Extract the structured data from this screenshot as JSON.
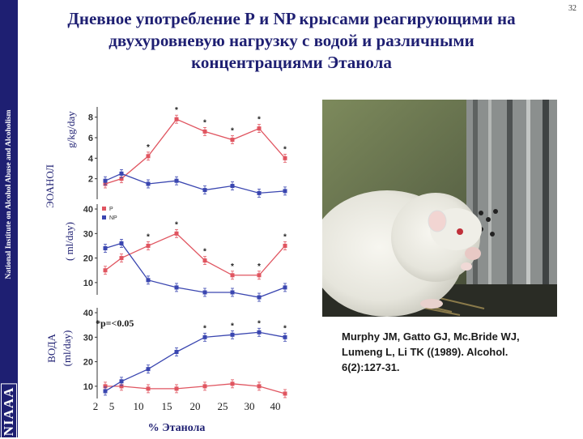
{
  "page": {
    "title_lines": [
      "Дневное употребление Р и NP крысами реагирующими на",
      "двухуровневую нагрузку с водой и различными",
      "концентрациями Этанола"
    ],
    "page_number": "32",
    "sidebar_institution": "National Institute on Alcohol Abuse and Alcoholism",
    "sidebar_logo": "NIAAA",
    "ethanol_label": "ЭОАНОЛ",
    "ethanol_units": "g/kg/day",
    "volume_units": "( ml/day)",
    "water_label": "ВОДА",
    "water_units": "(ml/day)",
    "significance_note": "*p=<0.05",
    "reference_lines": [
      "Murphy JM, Gatto GJ, Mc.Bride WJ,",
      "Lumeng L, Li TK ((1989). Alcohol.",
      "6(2):127-31."
    ],
    "photo_description_icon": "rat-drinking-photo"
  },
  "colors": {
    "sidebar": "#1e1f72",
    "title": "#1e1f72",
    "P": "#e05560",
    "NP": "#3a46b0",
    "axis": "#333333"
  },
  "chart_data": {
    "x_categories": [
      "2",
      "5",
      "10",
      "15",
      "20",
      "25",
      "30",
      "40"
    ],
    "xlabel": "% Этанола",
    "legend": [
      {
        "key": "P",
        "label": "P"
      },
      {
        "key": "NP",
        "label": "NP"
      }
    ],
    "panels": [
      {
        "name": "ethanol-intake",
        "type": "line",
        "ylabel": "g/kg/day",
        "ylim": [
          0,
          9
        ],
        "yticks": [
          "2",
          "4",
          "6",
          "8"
        ],
        "series": [
          {
            "name": "P",
            "values": [
              1.5,
              2.0,
              4.2,
              7.8,
              6.6,
              5.8,
              6.9,
              4.0
            ],
            "significant": [
              false,
              false,
              true,
              true,
              true,
              true,
              true,
              true
            ]
          },
          {
            "name": "NP",
            "values": [
              1.8,
              2.5,
              1.5,
              1.8,
              0.9,
              1.3,
              0.6,
              0.8
            ],
            "significant": [
              false,
              false,
              false,
              false,
              false,
              false,
              false,
              false
            ]
          }
        ]
      },
      {
        "name": "volume-intake",
        "type": "line",
        "ylabel": "( ml/day)",
        "ylim": [
          5,
          42
        ],
        "yticks": [
          "10",
          "20",
          "30",
          "40"
        ],
        "series": [
          {
            "name": "P",
            "values": [
              15,
              20,
              25,
              30,
              19,
              13,
              13,
              25
            ],
            "significant": [
              false,
              false,
              true,
              true,
              true,
              true,
              true,
              true
            ]
          },
          {
            "name": "NP",
            "values": [
              24,
              26,
              11,
              8,
              6,
              6,
              4,
              8
            ],
            "significant": [
              false,
              false,
              false,
              false,
              false,
              false,
              false,
              false
            ]
          }
        ]
      },
      {
        "name": "water-intake",
        "type": "line",
        "ylabel": "(ml/day)",
        "ylim": [
          5,
          42
        ],
        "yticks": [
          "10",
          "20",
          "30",
          "40"
        ],
        "series": [
          {
            "name": "P",
            "values": [
              10,
              10,
              9,
              9,
              10,
              11,
              10,
              7
            ],
            "significant": [
              false,
              false,
              false,
              false,
              false,
              false,
              false,
              false
            ]
          },
          {
            "name": "NP",
            "values": [
              8,
              12,
              17,
              24,
              30,
              31,
              32,
              30
            ],
            "significant": [
              false,
              false,
              false,
              false,
              true,
              true,
              true,
              true
            ]
          }
        ]
      }
    ]
  }
}
